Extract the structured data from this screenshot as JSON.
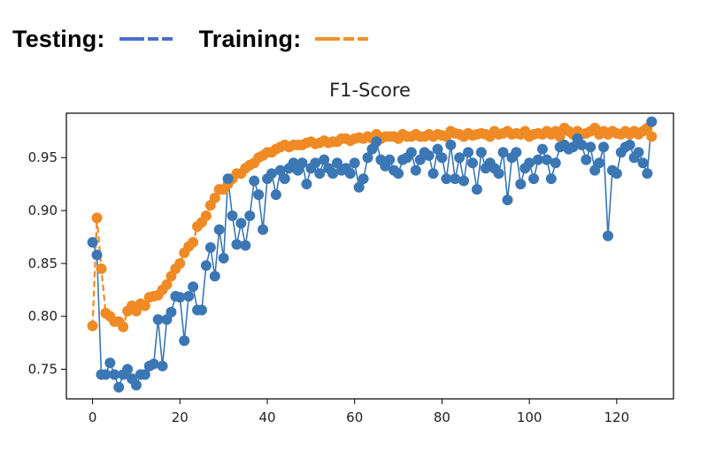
{
  "legend": {
    "testing_label": "Testing:",
    "training_label": "Training:"
  },
  "chart_data": {
    "type": "line",
    "title": "F1-Score",
    "xlabel": "",
    "ylabel": "",
    "xlim": [
      -6,
      133
    ],
    "ylim": [
      0.722,
      0.992
    ],
    "xticks": [
      0,
      20,
      40,
      60,
      80,
      100,
      120
    ],
    "yticks": [
      0.75,
      0.8,
      0.85,
      0.9,
      0.95
    ],
    "ytick_labels": [
      "0.75",
      "0.80",
      "0.85",
      "0.90",
      "0.95"
    ],
    "grid": false,
    "legend_position": "top-left, above chart",
    "colors": {
      "testing": "#3b77b4",
      "training": "#f08a24",
      "legend_testing": "#4a6fcf",
      "legend_training": "#f0922a"
    },
    "series": [
      {
        "name": "Testing",
        "color": "#3b77b4",
        "values": [
          0.87,
          0.858,
          0.745,
          0.745,
          0.756,
          0.745,
          0.733,
          0.745,
          0.75,
          0.741,
          0.735,
          0.745,
          0.745,
          0.753,
          0.755,
          0.797,
          0.753,
          0.797,
          0.804,
          0.819,
          0.818,
          0.777,
          0.819,
          0.828,
          0.806,
          0.806,
          0.848,
          0.865,
          0.838,
          0.882,
          0.855,
          0.93,
          0.895,
          0.868,
          0.888,
          0.867,
          0.895,
          0.928,
          0.915,
          0.882,
          0.93,
          0.935,
          0.915,
          0.938,
          0.93,
          0.94,
          0.945,
          0.938,
          0.945,
          0.925,
          0.94,
          0.945,
          0.935,
          0.948,
          0.94,
          0.935,
          0.945,
          0.938,
          0.94,
          0.935,
          0.945,
          0.922,
          0.93,
          0.95,
          0.958,
          0.965,
          0.948,
          0.942,
          0.948,
          0.938,
          0.935,
          0.948,
          0.95,
          0.955,
          0.938,
          0.948,
          0.955,
          0.952,
          0.935,
          0.958,
          0.95,
          0.93,
          0.962,
          0.93,
          0.95,
          0.928,
          0.955,
          0.945,
          0.92,
          0.955,
          0.94,
          0.945,
          0.94,
          0.935,
          0.955,
          0.91,
          0.95,
          0.955,
          0.925,
          0.94,
          0.945,
          0.93,
          0.948,
          0.958,
          0.948,
          0.93,
          0.945,
          0.96,
          0.962,
          0.958,
          0.96,
          0.968,
          0.962,
          0.948,
          0.96,
          0.938,
          0.945,
          0.96,
          0.876,
          0.938,
          0.935,
          0.955,
          0.96,
          0.962,
          0.95,
          0.955,
          0.945,
          0.935,
          0.984
        ]
      },
      {
        "name": "Training",
        "color": "#f08a24",
        "values": [
          0.791,
          0.893,
          0.845,
          0.803,
          0.8,
          0.795,
          0.795,
          0.79,
          0.805,
          0.81,
          0.805,
          0.812,
          0.81,
          0.818,
          0.819,
          0.82,
          0.825,
          0.83,
          0.838,
          0.845,
          0.85,
          0.86,
          0.866,
          0.87,
          0.885,
          0.889,
          0.895,
          0.905,
          0.912,
          0.92,
          0.92,
          0.925,
          0.93,
          0.935,
          0.935,
          0.94,
          0.943,
          0.945,
          0.95,
          0.952,
          0.955,
          0.955,
          0.958,
          0.96,
          0.962,
          0.96,
          0.962,
          0.962,
          0.962,
          0.964,
          0.965,
          0.963,
          0.964,
          0.966,
          0.964,
          0.965,
          0.965,
          0.968,
          0.968,
          0.966,
          0.968,
          0.969,
          0.968,
          0.97,
          0.968,
          0.972,
          0.968,
          0.97,
          0.97,
          0.97,
          0.968,
          0.972,
          0.97,
          0.97,
          0.972,
          0.97,
          0.97,
          0.972,
          0.97,
          0.972,
          0.971,
          0.97,
          0.975,
          0.973,
          0.972,
          0.97,
          0.973,
          0.971,
          0.972,
          0.973,
          0.972,
          0.97,
          0.975,
          0.972,
          0.973,
          0.975,
          0.972,
          0.973,
          0.972,
          0.975,
          0.97,
          0.972,
          0.973,
          0.972,
          0.975,
          0.972,
          0.975,
          0.97,
          0.978,
          0.975,
          0.972,
          0.975,
          0.972,
          0.973,
          0.975,
          0.978,
          0.972,
          0.975,
          0.972,
          0.975,
          0.973,
          0.972,
          0.975,
          0.972,
          0.975,
          0.972,
          0.975,
          0.978,
          0.97
        ]
      }
    ]
  }
}
